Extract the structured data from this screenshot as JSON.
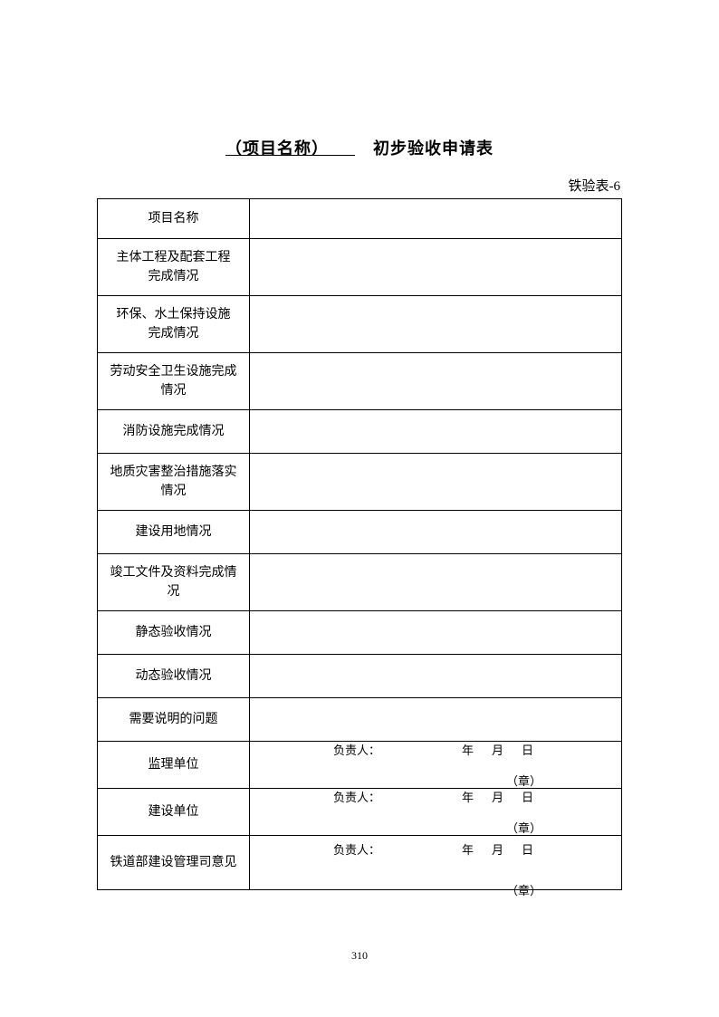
{
  "title": {
    "underlined": "（项目名称）　　",
    "plain": "初步验收申请表"
  },
  "tableId": "铁验表-6",
  "rows": [
    {
      "label": "项目名称",
      "height": "row-short"
    },
    {
      "label": "主体工程及配套工程\n完成情况",
      "height": "row-two-line"
    },
    {
      "label": "环保、水土保持设施\n完成情况",
      "height": "row-two-line"
    },
    {
      "label": "劳动安全卫生设施完成情况",
      "height": "row-med"
    },
    {
      "label": "消防设施完成情况",
      "height": "row-med"
    },
    {
      "label": "地质灾害整治措施落实情况",
      "height": "row-med"
    },
    {
      "label": "建设用地情况",
      "height": "row-med"
    },
    {
      "label": "竣工文件及资料完成情况",
      "height": "row-med"
    },
    {
      "label": "静态验收情况",
      "height": "row-med"
    },
    {
      "label": "动态验收情况",
      "height": "row-med"
    },
    {
      "label": "需要说明的问题",
      "height": "row-med"
    }
  ],
  "sigRows": [
    {
      "label": "监理单位",
      "tall": false
    },
    {
      "label": "建设单位",
      "tall": false
    },
    {
      "label": "铁道部建设管理司意见",
      "tall": true
    }
  ],
  "sig": {
    "seal": "（章）",
    "responsible": "负责人：",
    "year": "年",
    "month": "月",
    "day": "日"
  },
  "pageNumber": "310"
}
